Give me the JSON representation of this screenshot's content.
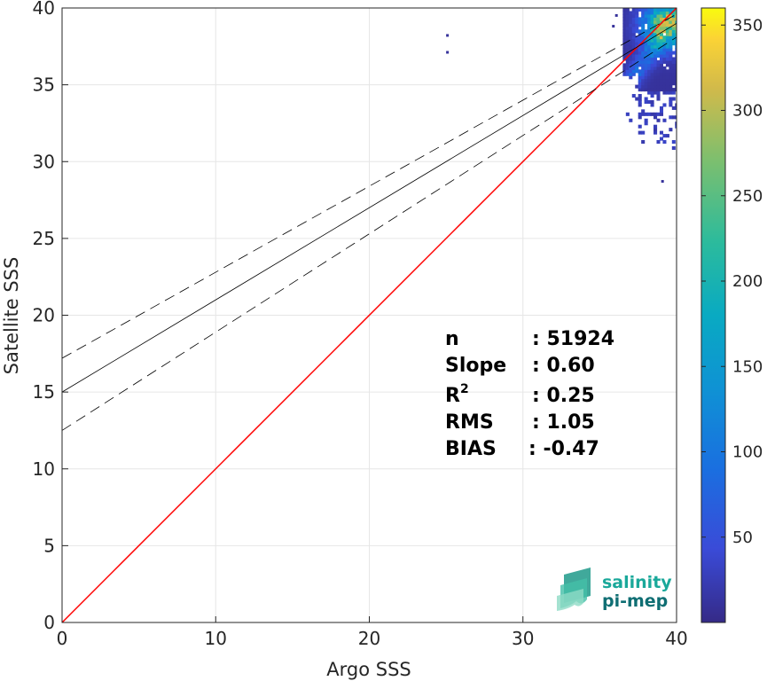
{
  "chart_data": {
    "type": "heatmap",
    "xlabel": "Argo SSS",
    "ylabel": "Satellite SSS",
    "xlim": [
      0,
      40
    ],
    "ylim": [
      0,
      40
    ],
    "xticks": [
      0,
      10,
      20,
      30,
      40
    ],
    "yticks": [
      0,
      5,
      10,
      15,
      20,
      25,
      30,
      35,
      40
    ],
    "grid": true,
    "colormap": "parula",
    "colorbar": {
      "ticks": [
        50,
        100,
        150,
        200,
        250,
        300,
        350
      ],
      "range": [
        0,
        360
      ]
    },
    "identity_line": {
      "from": [
        0,
        0
      ],
      "to": [
        40,
        40
      ],
      "color": "#ff0000"
    },
    "regression_line": {
      "intercept": 15.0,
      "slope": 0.6,
      "color": "#000000"
    },
    "confidence_lines": [
      {
        "intercept": 17.2,
        "slope": 0.56,
        "style": "dashed"
      },
      {
        "intercept": 12.5,
        "slope": 0.64,
        "style": "dashed"
      }
    ],
    "density_cluster": {
      "x_range": [
        36.5,
        40
      ],
      "y_range": [
        34.5,
        40
      ],
      "peak": [
        39.2,
        38.8
      ]
    },
    "stats": [
      {
        "label": "n",
        "value": ": 51924"
      },
      {
        "label": "Slope",
        "value": ": 0.60"
      },
      {
        "label": "R",
        "sup": "2",
        "value": ": 0.25"
      },
      {
        "label": "RMS",
        "value": ": 1.05"
      },
      {
        "label": "BIAS",
        "value": ": -0.47"
      }
    ]
  },
  "logo": {
    "line1": "salinity",
    "line2": "pi-mep",
    "color1": "#1aa89a",
    "color2": "#0f6e73"
  }
}
